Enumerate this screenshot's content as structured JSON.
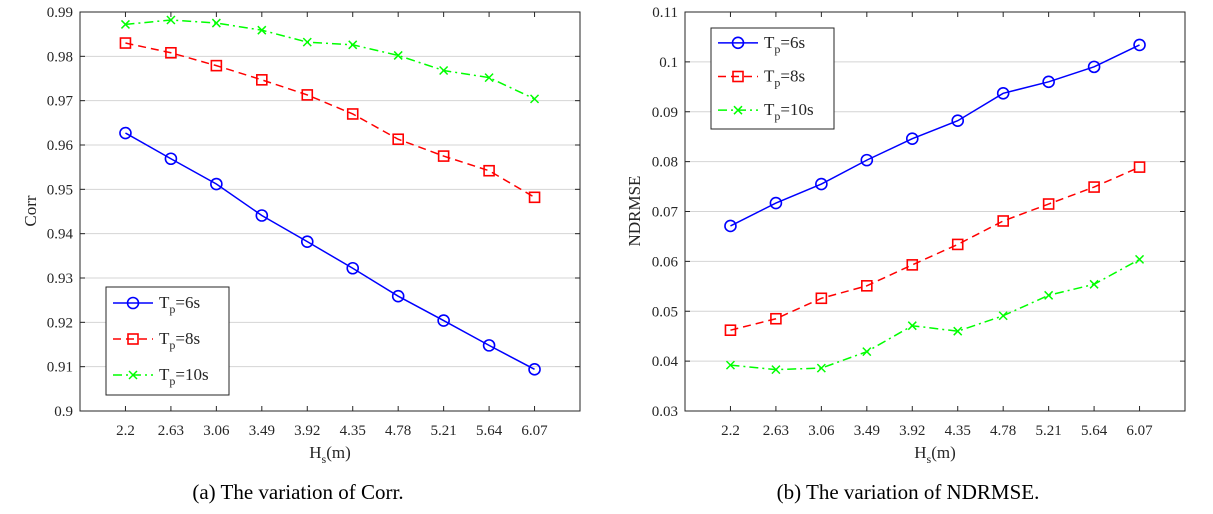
{
  "chart_data": [
    {
      "type": "line",
      "caption": "(a) The variation of Corr.",
      "x": [
        "2.2",
        "2.63",
        "3.06",
        "3.49",
        "3.92",
        "4.35",
        "4.78",
        "5.21",
        "5.64",
        "6.07"
      ],
      "xlabel": {
        "main": "H",
        "sub": "s",
        "tail": "(m)"
      },
      "ylabel": "Corr",
      "ylim": [
        0.9,
        0.99
      ],
      "yticks": [
        "0.9",
        "0.91",
        "0.92",
        "0.93",
        "0.94",
        "0.95",
        "0.96",
        "0.97",
        "0.98",
        "0.99"
      ],
      "grid": "horizontal",
      "legend_position": "bottom-left",
      "series": [
        {
          "name": {
            "main": "T",
            "sub": "p",
            "tail": "=6s"
          },
          "color": "#0000ff",
          "marker": "circle",
          "dash": "solid",
          "values": [
            0.9627,
            0.9569,
            0.9512,
            0.9441,
            0.9382,
            0.9322,
            0.9259,
            0.9204,
            0.9148,
            0.9094
          ]
        },
        {
          "name": {
            "main": "T",
            "sub": "p",
            "tail": "=8s"
          },
          "color": "#ff0000",
          "marker": "square",
          "dash": "dashed",
          "values": [
            0.983,
            0.9808,
            0.9779,
            0.9747,
            0.9713,
            0.967,
            0.9613,
            0.9575,
            0.9542,
            0.9482
          ]
        },
        {
          "name": {
            "main": "T",
            "sub": "p",
            "tail": "=10s"
          },
          "color": "#00ff00",
          "marker": "x",
          "dash": "dashdot",
          "values": [
            0.9872,
            0.9882,
            0.9875,
            0.9859,
            0.9832,
            0.9826,
            0.9802,
            0.9768,
            0.9752,
            0.9704
          ]
        }
      ]
    },
    {
      "type": "line",
      "caption": "(b) The variation of NDRMSE.",
      "x": [
        "2.2",
        "2.63",
        "3.06",
        "3.49",
        "3.92",
        "4.35",
        "4.78",
        "5.21",
        "5.64",
        "6.07"
      ],
      "xlabel": {
        "main": "H",
        "sub": "s",
        "tail": "(m)"
      },
      "ylabel": "NDRMSE",
      "ylim": [
        0.03,
        0.11
      ],
      "yticks": [
        "0.03",
        "0.04",
        "0.05",
        "0.06",
        "0.07",
        "0.08",
        "0.09",
        "0.1",
        "0.11"
      ],
      "grid": "horizontal",
      "legend_position": "top-left",
      "series": [
        {
          "name": {
            "main": "T",
            "sub": "p",
            "tail": "=6s"
          },
          "color": "#0000ff",
          "marker": "circle",
          "dash": "solid",
          "values": [
            0.0671,
            0.0717,
            0.0755,
            0.0803,
            0.0846,
            0.0882,
            0.0937,
            0.096,
            0.099,
            0.1034
          ]
        },
        {
          "name": {
            "main": "T",
            "sub": "p",
            "tail": "=8s"
          },
          "color": "#ff0000",
          "marker": "square",
          "dash": "dashed",
          "values": [
            0.0462,
            0.0485,
            0.0526,
            0.0551,
            0.0593,
            0.0634,
            0.0681,
            0.0715,
            0.0749,
            0.0789
          ]
        },
        {
          "name": {
            "main": "T",
            "sub": "p",
            "tail": "=10s"
          },
          "color": "#00ff00",
          "marker": "x",
          "dash": "dashdot",
          "values": [
            0.0392,
            0.0383,
            0.0386,
            0.0419,
            0.0471,
            0.046,
            0.0491,
            0.0532,
            0.0554,
            0.0604
          ]
        }
      ]
    }
  ]
}
